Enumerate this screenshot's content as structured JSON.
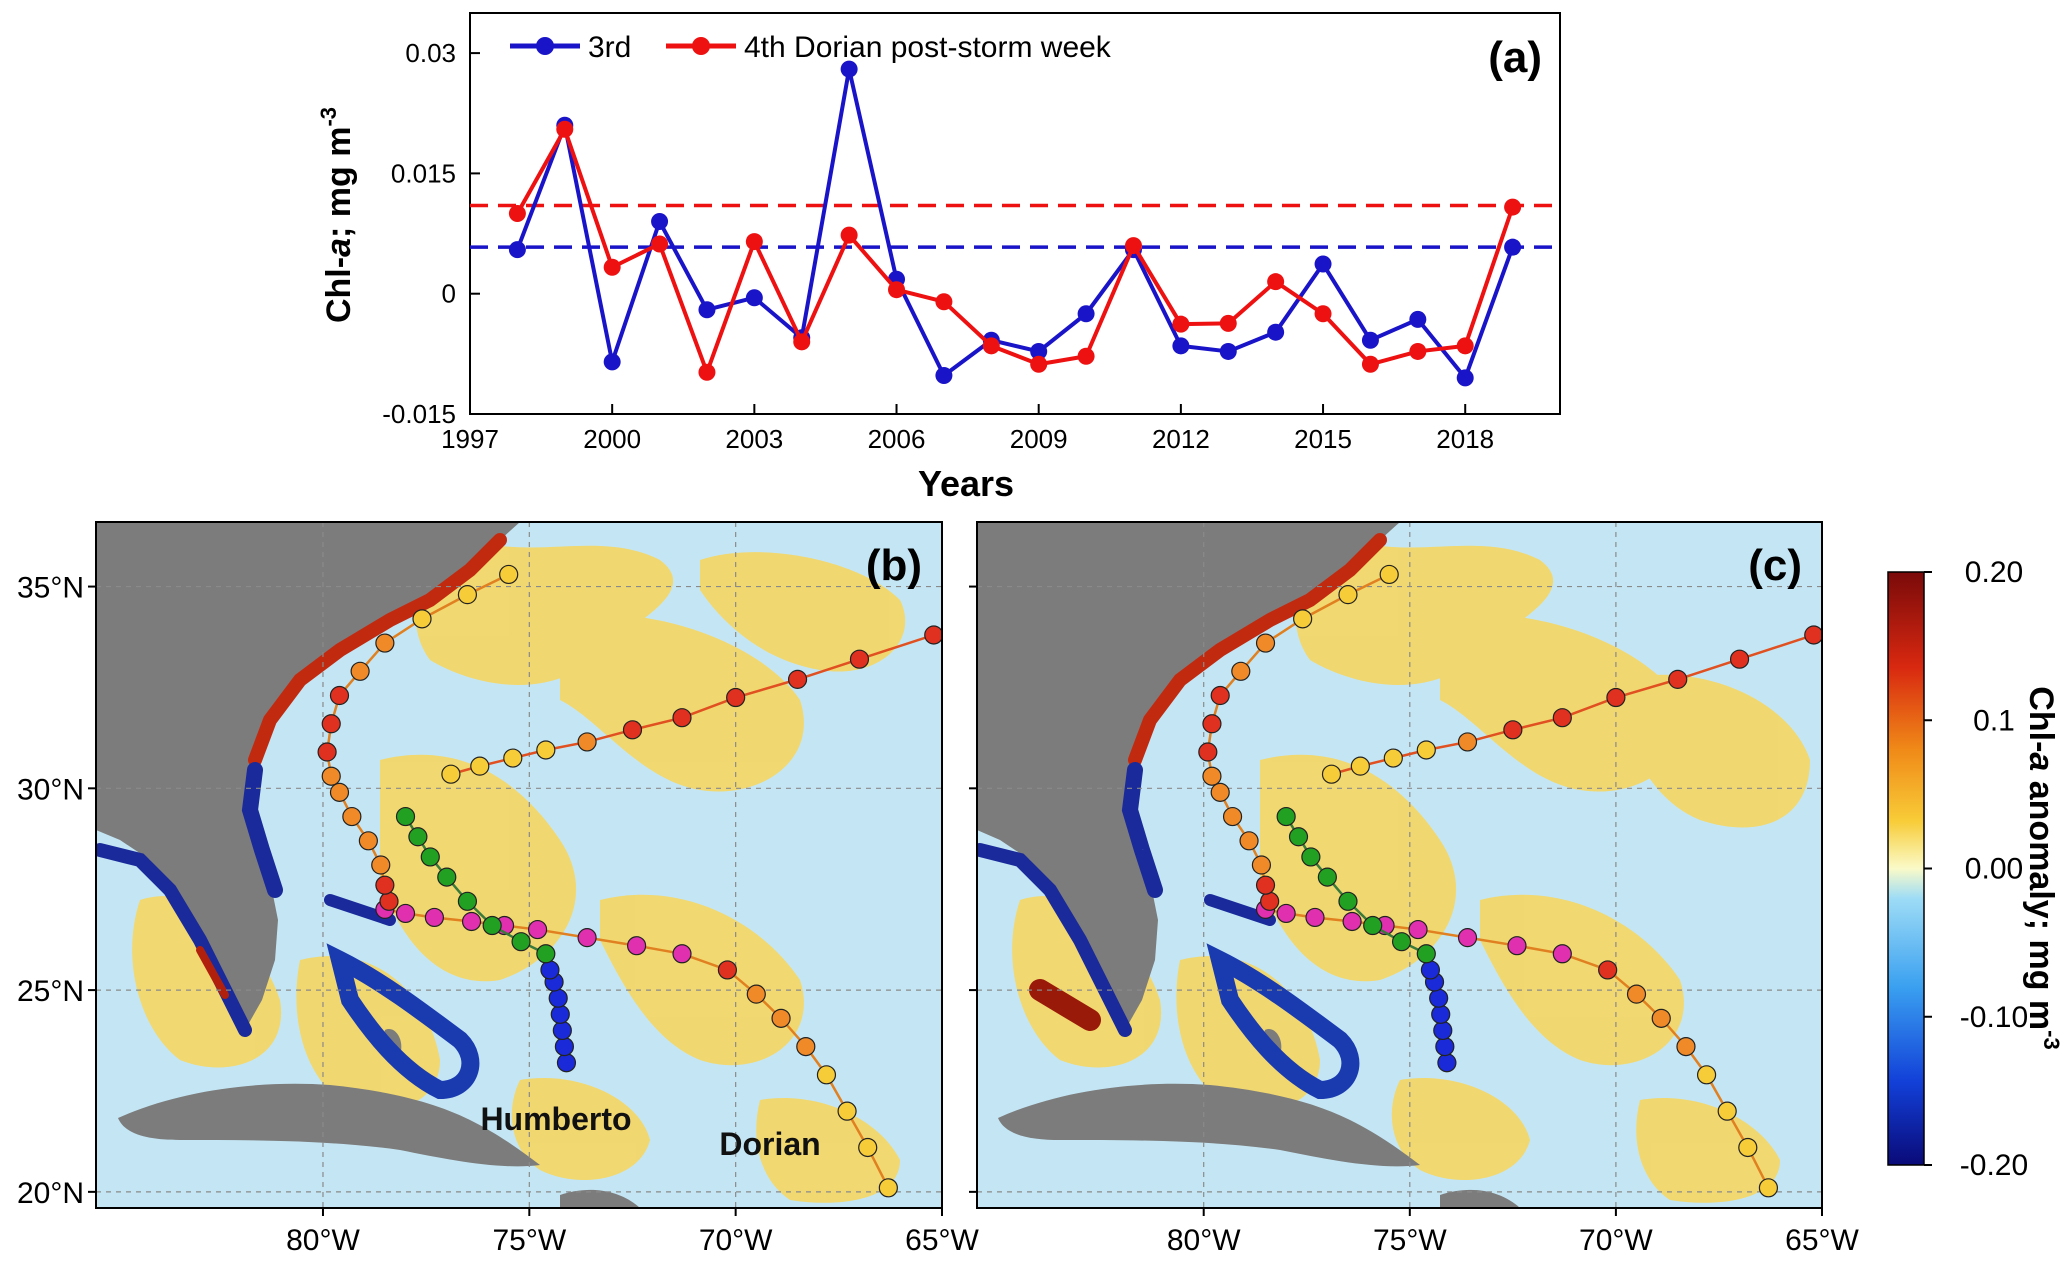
{
  "chart_data": [
    {
      "type": "line",
      "panel_label": "(a)",
      "xlabel": "Years",
      "ylabel": "Chl-a; mg m-3",
      "ylabel_parts": {
        "a": "Chl-",
        "b": "a",
        "c": "; mg m",
        "d": "-3"
      },
      "xlim": [
        1997,
        2020
      ],
      "ylim": [
        -0.015,
        0.035
      ],
      "x_ticks": [
        1997,
        2000,
        2003,
        2006,
        2009,
        2012,
        2015,
        2018
      ],
      "y_ticks": [
        -0.015,
        0,
        0.015,
        0.03
      ],
      "y_tick_labels": [
        "-0.015",
        "0",
        "0.015",
        "0.03"
      ],
      "x": [
        1998,
        1999,
        2000,
        2001,
        2002,
        2003,
        2004,
        2005,
        2006,
        2007,
        2008,
        2009,
        2010,
        2011,
        2012,
        2013,
        2014,
        2015,
        2016,
        2017,
        2018,
        2019
      ],
      "series": [
        {
          "name": "3rd",
          "color": "#1a14c8",
          "values": [
            0.0055,
            0.021,
            -0.0085,
            0.009,
            -0.002,
            -0.0005,
            -0.0055,
            0.028,
            0.0018,
            -0.0102,
            -0.0058,
            -0.0072,
            -0.0025,
            0.0055,
            -0.0065,
            -0.0072,
            -0.0048,
            0.0037,
            -0.0058,
            -0.0032,
            -0.0105,
            0.0058
          ]
        },
        {
          "name": "4th Dorian post-storm week",
          "color": "#ee1111",
          "values": [
            0.01,
            0.0205,
            0.0033,
            0.0062,
            -0.0098,
            0.0065,
            -0.006,
            0.0073,
            0.0005,
            -0.001,
            -0.0065,
            -0.0088,
            -0.0078,
            0.006,
            -0.0038,
            -0.0037,
            0.0015,
            -0.0025,
            -0.0088,
            -0.0072,
            -0.0065,
            0.0108
          ]
        }
      ],
      "reference_lines": [
        {
          "series": "3rd",
          "value": 0.0058,
          "color": "#1a14c8"
        },
        {
          "series": "4th Dorian post-storm week",
          "value": 0.011,
          "color": "#ee1111"
        }
      ],
      "legend": {
        "placement": "top-left",
        "entries": [
          "3rd",
          "4th Dorian post-storm week"
        ]
      }
    },
    {
      "type": "heatmap",
      "panel_label": "(b)",
      "description_labels": {
        "humberto": "Humberto",
        "dorian": "Dorian"
      },
      "x_ticks": [
        "80°W",
        "75°W",
        "70°W",
        "65°W"
      ],
      "y_ticks": [
        "35°N",
        "30°N",
        "25°N",
        "20°N"
      ],
      "lon_range": [
        -85,
        -65
      ],
      "lat_range": [
        19.8,
        36.5
      ]
    },
    {
      "type": "heatmap",
      "panel_label": "(c)",
      "x_ticks": [
        "80°W",
        "75°W",
        "70°W",
        "65°W"
      ],
      "lon_range": [
        -85,
        -65
      ],
      "lat_range": [
        19.8,
        36.5
      ]
    }
  ],
  "colorbar": {
    "label": "Chl-a anomaly; mg m-3",
    "label_parts": {
      "a": "Chl-",
      "b": "a",
      "c": " anomaly; mg m",
      "d": "-3"
    },
    "range": [
      -0.2,
      0.2
    ],
    "ticks": [
      0.2,
      0.1,
      0.0,
      -0.1,
      -0.2
    ],
    "tick_labels": [
      "0.20",
      "0.1",
      "0.00",
      "-0.10",
      "-0.20"
    ],
    "colors": [
      "#0a0a78",
      "#1240d8",
      "#3aa0f0",
      "#9edcf6",
      "#fafac8",
      "#f8cc38",
      "#f08a18",
      "#d82810",
      "#7a0a0a"
    ]
  },
  "tracks": {
    "dorian_lon": [
      -66.3,
      -66.8,
      -67.3,
      -67.8,
      -68.3,
      -68.9,
      -69.5,
      -70.2,
      -71.3,
      -72.4,
      -73.6,
      -74.8,
      -75.6,
      -76.4,
      -77.3,
      -78.0,
      -78.5,
      -78.4,
      -78.5,
      -78.6,
      -78.9,
      -79.3,
      -79.6,
      -79.8,
      -79.9,
      -79.8,
      -79.6,
      -79.1,
      -78.5,
      -77.6,
      -76.5,
      -75.5
    ],
    "dorian_lat": [
      20.1,
      21.1,
      22.0,
      22.9,
      23.6,
      24.3,
      24.9,
      25.5,
      25.9,
      26.1,
      26.3,
      26.5,
      26.6,
      26.7,
      26.8,
      26.9,
      27.0,
      27.2,
      27.6,
      28.1,
      28.7,
      29.3,
      29.9,
      30.3,
      30.9,
      31.6,
      32.3,
      32.9,
      33.6,
      34.2,
      34.8,
      35.3
    ],
    "dorian_colors": [
      "#f6cc38",
      "#f6cc38",
      "#f6cc38",
      "#f6cc38",
      "#f08a28",
      "#f08a28",
      "#f08a28",
      "#e03020",
      "#e030b0",
      "#e030b0",
      "#e030b0",
      "#e030b0",
      "#e030b0",
      "#e030b0",
      "#e030b0",
      "#e030b0",
      "#e030b0",
      "#e03020",
      "#e03020",
      "#f08a28",
      "#f08a28",
      "#f08a28",
      "#f08a28",
      "#f08a28",
      "#e03020",
      "#e03020",
      "#e03020",
      "#f08a28",
      "#f08a28",
      "#f6cc38",
      "#f6cc38",
      "#f6cc38"
    ],
    "extra_lon": [
      -76.9,
      -76.2,
      -75.4,
      -74.6,
      -73.6,
      -72.5,
      -71.3,
      -70.0,
      -68.5,
      -67.0,
      -65.2
    ],
    "extra_lat": [
      30.35,
      30.55,
      30.75,
      30.95,
      31.15,
      31.45,
      31.75,
      32.25,
      32.7,
      33.2,
      33.8
    ],
    "extra_colors": [
      "#f6cc38",
      "#f6cc38",
      "#f6cc38",
      "#f6cc38",
      "#f08a28",
      "#e03020",
      "#e03020",
      "#e03020",
      "#e03020",
      "#e03020",
      "#e03020"
    ],
    "humberto_lon": [
      -74.1,
      -74.15,
      -74.2,
      -74.25,
      -74.3,
      -74.4,
      -74.5,
      -74.6,
      -75.2,
      -75.9,
      -76.5,
      -77.0,
      -77.4,
      -77.7,
      -78.0
    ],
    "humberto_lat": [
      23.2,
      23.6,
      24.0,
      24.4,
      24.8,
      25.2,
      25.5,
      25.9,
      26.2,
      26.6,
      27.2,
      27.8,
      28.3,
      28.8,
      29.3
    ],
    "humberto_colors": [
      "#1a2ad8",
      "#1a2ad8",
      "#1a2ad8",
      "#1a2ad8",
      "#1a2ad8",
      "#1a2ad8",
      "#1a2ad8",
      "#22a022",
      "#22a022",
      "#22a022",
      "#22a022",
      "#22a022",
      "#22a022",
      "#22a022",
      "#22a022"
    ]
  }
}
